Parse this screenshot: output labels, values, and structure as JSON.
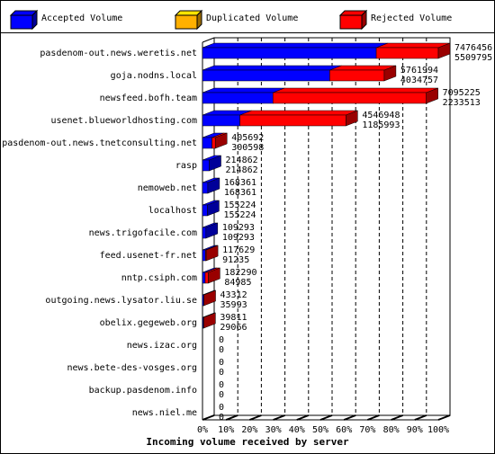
{
  "chart_data": {
    "type": "bar3d-stacked-horizontal",
    "x_label": "Incoming volume received by server",
    "categories": [
      "pasdenom-out.news.weretis.net",
      "goja.nodns.local",
      "newsfeed.bofh.team",
      "usenet.blueworldhosting.com",
      "pasdenom-out.news.tnetconsulting.net",
      "rasp",
      "nemoweb.net",
      "localhost",
      "news.trigofacile.com",
      "feed.usenet-fr.net",
      "nntp.csiph.com",
      "outgoing.news.lysator.liu.se",
      "obelix.gegeweb.org",
      "news.izac.org",
      "news.bete-des-vosges.org",
      "backup.pasdenom.info",
      "news.niel.me"
    ],
    "totals": [
      7476456,
      5761994,
      7095225,
      4546948,
      405692,
      214862,
      168361,
      155224,
      109293,
      117629,
      182290,
      43312,
      39811,
      0,
      0,
      0,
      0
    ],
    "series": [
      {
        "name": "Accepted Volume",
        "color": "#0000ff",
        "values": [
          5509795,
          4034757,
          2233513,
          1185993,
          300598,
          214862,
          168361,
          155224,
          109293,
          91235,
          84985,
          35993,
          29066,
          0,
          0,
          0,
          0
        ]
      },
      {
        "name": "Duplicated Volume",
        "color": "#ffb000",
        "values": [
          0,
          0,
          0,
          0,
          0,
          0,
          0,
          0,
          0,
          0,
          0,
          0,
          0,
          0,
          0,
          0,
          0
        ]
      },
      {
        "name": "Rejected Volume",
        "color": "#ff0000",
        "values": [
          1966661,
          1727237,
          4861712,
          3360955,
          105094,
          0,
          0,
          0,
          0,
          26394,
          97305,
          7319,
          10745,
          0,
          0,
          0,
          0
        ]
      }
    ],
    "xlim": [
      0,
      7476456
    ],
    "xticks": [
      {
        "value": 0,
        "label": "0%"
      },
      {
        "value": 747645.6,
        "label": "10%"
      },
      {
        "value": 1495291.2,
        "label": "20%"
      },
      {
        "value": 2242936.8,
        "label": "30%"
      },
      {
        "value": 2990582.4,
        "label": "40%"
      },
      {
        "value": 3738228,
        "label": "50%"
      },
      {
        "value": 4485873.6,
        "label": "60%"
      },
      {
        "value": 5233519.2,
        "label": "70%"
      },
      {
        "value": 5981164.8,
        "label": "80%"
      },
      {
        "value": 6728810.4,
        "label": "90%"
      },
      {
        "value": 7476456,
        "label": "100%"
      }
    ],
    "grid": true
  }
}
